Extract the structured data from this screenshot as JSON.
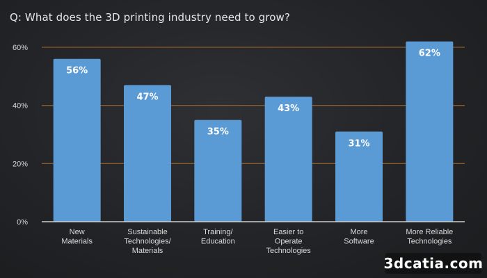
{
  "title": "Q: What does the 3D printing industry need to grow?",
  "watermark": "3dcatia.com",
  "colors": {
    "bar": "#5b9bd5",
    "gridline": "#8a5a2b",
    "axis": "#cfcfcf",
    "text": "#d9d9d9",
    "value_label": "#ffffff"
  },
  "chart_data": {
    "type": "bar",
    "title": "Q: What does the 3D printing industry need to grow?",
    "categories": [
      [
        "New",
        "Materials"
      ],
      [
        "Sustainable",
        "Technologies/",
        "Materials"
      ],
      [
        "Training/",
        "Education"
      ],
      [
        "Easier to",
        "Operate",
        "Technologies"
      ],
      [
        "More",
        "Software"
      ],
      [
        "More Reliable",
        "Technologies"
      ]
    ],
    "values": [
      56,
      47,
      35,
      43,
      31,
      62
    ],
    "value_labels": [
      "56%",
      "47%",
      "35%",
      "43%",
      "31%",
      "62%"
    ],
    "yticks": [
      0,
      20,
      40,
      60
    ],
    "ytick_labels": [
      "0%",
      "20%",
      "40%",
      "60%"
    ],
    "ylim": [
      0,
      60
    ],
    "grid": true,
    "xlabel": "",
    "ylabel": ""
  }
}
